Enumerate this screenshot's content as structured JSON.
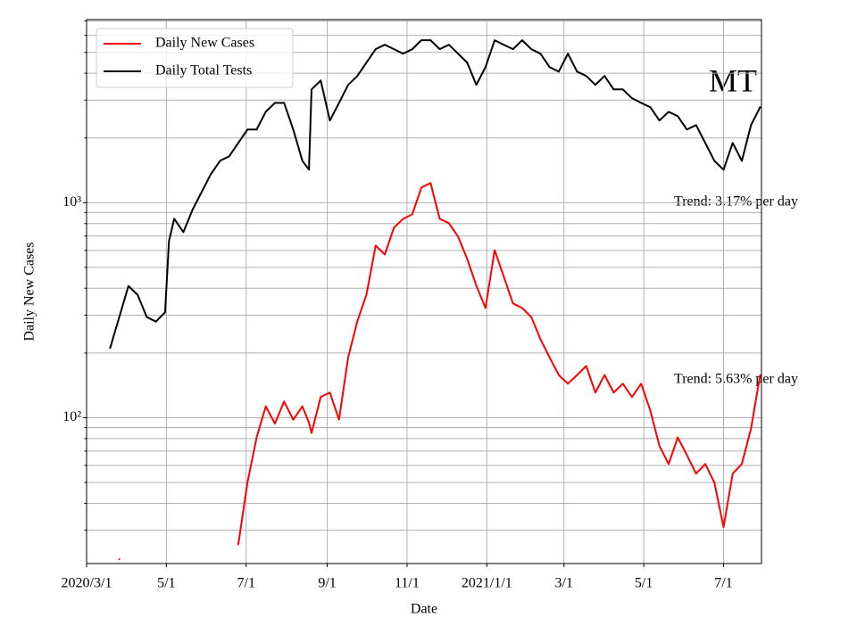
{
  "chart_data": {
    "type": "line",
    "yscale": "log",
    "grid": true,
    "legend": "upper left",
    "ylabel": "Daily New Cases",
    "xlabel": "Date",
    "annotations": [
      "MT",
      "Trend: 3.17% per day",
      "Trend: 5.63% per day"
    ],
    "xlim": [
      "2020-03-01",
      "2021-07-30"
    ],
    "xticks": [
      {
        "value": "2020-03-01",
        "label": "2020/3/1"
      },
      {
        "value": "2020-05-01",
        "label": "5/1"
      },
      {
        "value": "2020-07-01",
        "label": "7/1"
      },
      {
        "value": "2020-09-01",
        "label": "9/1"
      },
      {
        "value": "2020-11-01",
        "label": "11/1"
      },
      {
        "value": "2021-01-01",
        "label": "2021/1/1"
      },
      {
        "value": "2021-03-01",
        "label": "3/1"
      },
      {
        "value": "2021-05-01",
        "label": "5/1"
      },
      {
        "value": "2021-07-01",
        "label": "7/1"
      }
    ],
    "ylim": [
      21,
      7100
    ],
    "yticks": [
      {
        "value": 100,
        "label": "10²"
      },
      {
        "value": 1000,
        "label": "10³"
      }
    ],
    "yminorticks": [
      30,
      40,
      50,
      60,
      70,
      80,
      90,
      200,
      300,
      400,
      500,
      600,
      700,
      800,
      900,
      2000,
      3000,
      4000,
      5000,
      6000,
      7000
    ],
    "x": [
      "2020-03-19",
      "2020-03-26",
      "2020-04-02",
      "2020-04-09",
      "2020-04-16",
      "2020-04-23",
      "2020-04-30",
      "2020-05-03",
      "2020-05-07",
      "2020-05-14",
      "2020-05-21",
      "2020-05-28",
      "2020-06-04",
      "2020-06-11",
      "2020-06-18",
      "2020-06-25",
      "2020-07-02",
      "2020-07-09",
      "2020-07-16",
      "2020-07-23",
      "2020-07-30",
      "2020-08-06",
      "2020-08-13",
      "2020-08-18",
      "2020-08-20",
      "2020-08-27",
      "2020-09-03",
      "2020-09-10",
      "2020-09-17",
      "2020-09-24",
      "2020-10-01",
      "2020-10-08",
      "2020-10-15",
      "2020-10-22",
      "2020-10-29",
      "2020-11-05",
      "2020-11-12",
      "2020-11-19",
      "2020-11-26",
      "2020-12-03",
      "2020-12-10",
      "2020-12-17",
      "2020-12-24",
      "2020-12-31",
      "2021-01-07",
      "2021-01-14",
      "2021-01-21",
      "2021-01-28",
      "2021-02-04",
      "2021-02-11",
      "2021-02-18",
      "2021-02-25",
      "2021-03-04",
      "2021-03-11",
      "2021-03-18",
      "2021-03-25",
      "2021-04-01",
      "2021-04-08",
      "2021-04-15",
      "2021-04-22",
      "2021-04-29",
      "2021-05-06",
      "2021-05-13",
      "2021-05-20",
      "2021-05-27",
      "2021-06-03",
      "2021-06-10",
      "2021-06-17",
      "2021-06-24",
      "2021-07-01",
      "2021-07-08",
      "2021-07-15",
      "2021-07-22",
      "2021-07-29"
    ],
    "series": [
      {
        "name": "Daily New Cases",
        "color": "#ff0000",
        "values": [
          null,
          22,
          null,
          null,
          null,
          null,
          null,
          null,
          null,
          null,
          null,
          null,
          null,
          null,
          null,
          25.8,
          50,
          81,
          113,
          94,
          119,
          98,
          113,
          95,
          85,
          125,
          131,
          98,
          191,
          281,
          374,
          632,
          574,
          765,
          841,
          883,
          1177,
          1234,
          841,
          803,
          696,
          548,
          411,
          324,
          602,
          453,
          340,
          324,
          294,
          232,
          191,
          158,
          144,
          158,
          174,
          131,
          158,
          131,
          144,
          125,
          144,
          108,
          74,
          61,
          81,
          67,
          55,
          61,
          50,
          31,
          55,
          61,
          89,
          158
        ]
      },
      {
        "name": "Daily Total Tests",
        "color": "#000000",
        "values": [
          211,
          294,
          410,
          373,
          294,
          280,
          309,
          663,
          842,
          730,
          927,
          1122,
          1357,
          1565,
          1643,
          1897,
          2189,
          2189,
          2646,
          2911,
          2911,
          2189,
          1565,
          1424,
          3362,
          3700,
          2410,
          2911,
          3530,
          3885,
          4480,
          5174,
          5424,
          5174,
          4931,
          5174,
          5694,
          5694,
          5174,
          5424,
          4931,
          4480,
          3530,
          4270,
          5694,
          5424,
          5174,
          5694,
          5174,
          4931,
          4270,
          4070,
          4931,
          4070,
          3885,
          3530,
          3885,
          3362,
          3362,
          3060,
          2911,
          2780,
          2410,
          2646,
          2525,
          2189,
          2295,
          1897,
          1565,
          1424,
          1897,
          1565,
          2295,
          2780
        ]
      }
    ]
  }
}
